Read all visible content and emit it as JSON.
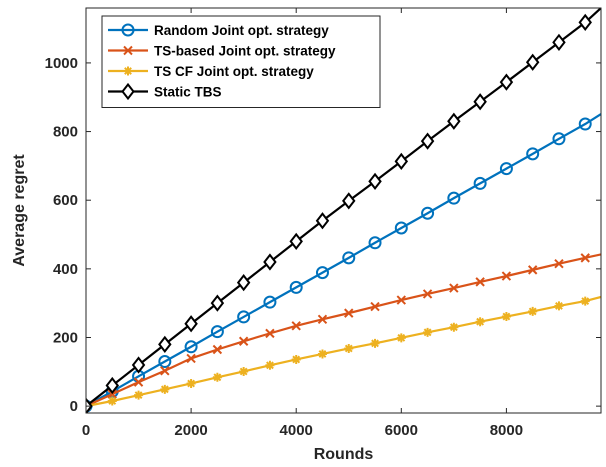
{
  "chart_data": {
    "type": "line",
    "title": "",
    "xlabel": "Rounds",
    "ylabel": "Average regret",
    "xlim": [
      0,
      9800
    ],
    "ylim": [
      -20,
      1160
    ],
    "xticks": [
      0,
      2000,
      4000,
      6000,
      8000
    ],
    "yticks": [
      0,
      200,
      400,
      600,
      800,
      1000
    ],
    "tick_labels_x": [
      "0",
      "2000",
      "4000",
      "6000",
      "8000"
    ],
    "tick_labels_y": [
      "0",
      "200",
      "400",
      "600",
      "800",
      "1000"
    ],
    "grid": false,
    "legend_position": "top-left",
    "series": [
      {
        "name": "Random Joint opt. strategy",
        "color": "#0072BD",
        "marker": "circle",
        "x": [
          0,
          500,
          1000,
          1500,
          2000,
          2500,
          3000,
          3500,
          4000,
          4500,
          5000,
          5500,
          6000,
          6500,
          7000,
          7500,
          8000,
          8500,
          9000,
          9500,
          9800
        ],
        "y": [
          0,
          43,
          87,
          130,
          173,
          217,
          260,
          303,
          346,
          389,
          432,
          476,
          519,
          562,
          606,
          649,
          692,
          735,
          779,
          822,
          851
        ]
      },
      {
        "name": "TS-based Joint opt. strategy",
        "color": "#D95319",
        "marker": "x",
        "x": [
          0,
          500,
          1000,
          1500,
          2000,
          2500,
          3000,
          3500,
          4000,
          4500,
          5000,
          5500,
          6000,
          6500,
          7000,
          7500,
          8000,
          8500,
          9000,
          9500,
          9800
        ],
        "y": [
          0,
          35,
          70,
          103,
          139,
          165,
          189,
          212,
          234,
          253,
          271,
          290,
          309,
          327,
          344,
          362,
          379,
          397,
          415,
          432,
          442
        ]
      },
      {
        "name": "TS CF Joint opt. strategy",
        "color": "#EDB120",
        "marker": "asterisk",
        "x": [
          0,
          500,
          1000,
          1500,
          2000,
          2500,
          3000,
          3500,
          4000,
          4500,
          5000,
          5500,
          6000,
          6500,
          7000,
          7500,
          8000,
          8500,
          9000,
          9500,
          9800
        ],
        "y": [
          0,
          15,
          32,
          49,
          66,
          84,
          101,
          119,
          136,
          152,
          168,
          183,
          199,
          215,
          230,
          246,
          261,
          276,
          292,
          306,
          318
        ]
      },
      {
        "name": "Static TBS",
        "color": "#000000",
        "marker": "diamond",
        "x": [
          0,
          500,
          1000,
          1500,
          2000,
          2500,
          3000,
          3500,
          4000,
          4500,
          5000,
          5500,
          6000,
          6500,
          7000,
          7500,
          8000,
          8500,
          9000,
          9500,
          9800
        ],
        "y": [
          0,
          60,
          120,
          180,
          240,
          300,
          360,
          420,
          480,
          540,
          598,
          655,
          713,
          772,
          830,
          887,
          944,
          1002,
          1060,
          1118,
          1160
        ]
      }
    ]
  }
}
